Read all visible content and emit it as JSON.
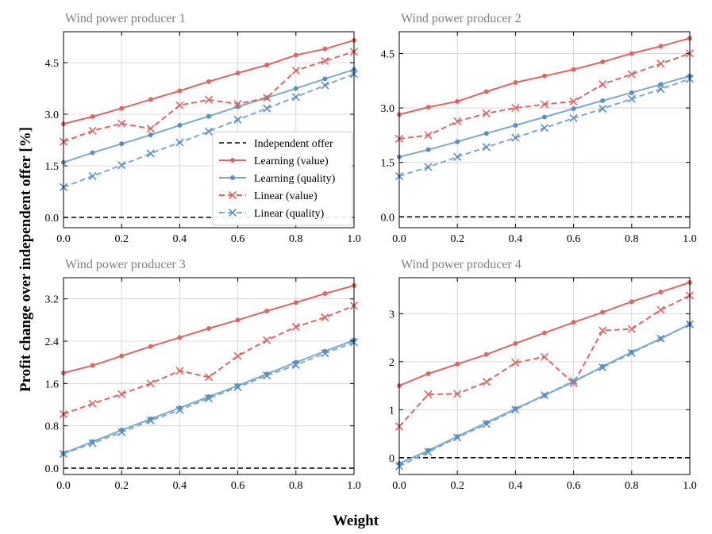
{
  "figure": {
    "ylabel": "Profit change over independent offer [%]",
    "xlabel": "Weight"
  },
  "legend": [
    {
      "label": "Independent offer",
      "style": "baseline"
    },
    {
      "label": "Learning (value)",
      "style": "learning-value"
    },
    {
      "label": "Learning (quality)",
      "style": "learning-quality"
    },
    {
      "label": "Linear (value)",
      "style": "linear-value"
    },
    {
      "label": "Linear (quality)",
      "style": "linear-quality"
    }
  ],
  "colors": {
    "red": "#e06666",
    "blue": "#7eaad2",
    "blue_marker": "#5b8fc4",
    "baseline": "#000000"
  },
  "chart_data": [
    {
      "type": "line",
      "title": "Wind power producer 1",
      "x": [
        0.0,
        0.1,
        0.2,
        0.3,
        0.4,
        0.5,
        0.6,
        0.7,
        0.8,
        0.9,
        1.0
      ],
      "xticks": [
        "0.0",
        "0.2",
        "0.4",
        "0.6",
        "0.8",
        "1.0"
      ],
      "xlim": [
        0,
        1
      ],
      "ylim": [
        -0.3,
        5.4
      ],
      "yticks": [
        0.0,
        1.5,
        3.0,
        4.5
      ],
      "ytick_labels": [
        "0.0",
        "1.5",
        "3.0",
        "4.5"
      ],
      "legend": true,
      "series": [
        {
          "name": "Learning (value)",
          "values": [
            2.72,
            2.93,
            3.17,
            3.43,
            3.68,
            3.95,
            4.2,
            4.43,
            4.72,
            4.9,
            5.15
          ]
        },
        {
          "name": "Learning (quality)",
          "values": [
            1.6,
            1.88,
            2.14,
            2.4,
            2.68,
            2.94,
            3.22,
            3.48,
            3.75,
            4.03,
            4.3
          ]
        },
        {
          "name": "Linear (value)",
          "values": [
            2.2,
            2.52,
            2.73,
            2.58,
            3.26,
            3.42,
            3.3,
            3.48,
            4.27,
            4.55,
            4.82
          ]
        },
        {
          "name": "Linear (quality)",
          "values": [
            0.88,
            1.2,
            1.52,
            1.86,
            2.18,
            2.5,
            2.84,
            3.17,
            3.5,
            3.84,
            4.17
          ]
        }
      ]
    },
    {
      "type": "line",
      "title": "Wind power producer 2",
      "x": [
        0.0,
        0.1,
        0.2,
        0.3,
        0.4,
        0.5,
        0.6,
        0.7,
        0.8,
        0.9,
        1.0
      ],
      "xticks": [
        "0.0",
        "0.2",
        "0.4",
        "0.6",
        "0.8",
        "1.0"
      ],
      "xlim": [
        0,
        1
      ],
      "ylim": [
        -0.3,
        5.1
      ],
      "yticks": [
        0.0,
        1.5,
        3.0,
        4.5
      ],
      "ytick_labels": [
        "0.0",
        "1.5",
        "3.0",
        "4.5"
      ],
      "legend": false,
      "series": [
        {
          "name": "Learning (value)",
          "values": [
            2.82,
            3.02,
            3.18,
            3.45,
            3.7,
            3.88,
            4.06,
            4.27,
            4.5,
            4.7,
            4.92
          ]
        },
        {
          "name": "Learning (quality)",
          "values": [
            1.65,
            1.85,
            2.07,
            2.3,
            2.52,
            2.75,
            2.98,
            3.2,
            3.42,
            3.65,
            3.88
          ]
        },
        {
          "name": "Linear (value)",
          "values": [
            2.15,
            2.25,
            2.63,
            2.85,
            3.0,
            3.1,
            3.18,
            3.65,
            3.93,
            4.22,
            4.5
          ]
        },
        {
          "name": "Linear (quality)",
          "values": [
            1.12,
            1.37,
            1.65,
            1.92,
            2.18,
            2.45,
            2.72,
            2.98,
            3.25,
            3.52,
            3.8
          ]
        }
      ]
    },
    {
      "type": "line",
      "title": "Wind power producer 3",
      "x": [
        0.0,
        0.1,
        0.2,
        0.3,
        0.4,
        0.5,
        0.6,
        0.7,
        0.8,
        0.9,
        1.0
      ],
      "xticks": [
        "0.0",
        "0.2",
        "0.4",
        "0.6",
        "0.8",
        "1.0"
      ],
      "xlim": [
        0,
        1
      ],
      "ylim": [
        -0.12,
        3.6
      ],
      "yticks": [
        0.0,
        0.8,
        1.6,
        2.4,
        3.2
      ],
      "ytick_labels": [
        "0.0",
        "0.8",
        "1.6",
        "2.4",
        "3.2"
      ],
      "legend": false,
      "series": [
        {
          "name": "Learning (value)",
          "values": [
            1.8,
            1.94,
            2.12,
            2.3,
            2.47,
            2.64,
            2.8,
            2.97,
            3.13,
            3.3,
            3.45
          ]
        },
        {
          "name": "Learning (quality)",
          "values": [
            0.28,
            0.5,
            0.72,
            0.93,
            1.14,
            1.35,
            1.56,
            1.78,
            2.0,
            2.21,
            2.42
          ]
        },
        {
          "name": "Linear (value)",
          "values": [
            1.02,
            1.22,
            1.4,
            1.6,
            1.84,
            1.72,
            2.12,
            2.42,
            2.67,
            2.85,
            3.07
          ]
        },
        {
          "name": "Linear (quality)",
          "values": [
            0.27,
            0.47,
            0.68,
            0.9,
            1.1,
            1.32,
            1.53,
            1.75,
            1.95,
            2.17,
            2.38
          ]
        }
      ]
    },
    {
      "type": "line",
      "title": "Wind power producer 4",
      "x": [
        0.0,
        0.1,
        0.2,
        0.3,
        0.4,
        0.5,
        0.6,
        0.7,
        0.8,
        0.9,
        1.0
      ],
      "xticks": [
        "0.0",
        "0.2",
        "0.4",
        "0.6",
        "0.8",
        "1.0"
      ],
      "xlim": [
        0,
        1
      ],
      "ylim": [
        -0.35,
        3.75
      ],
      "yticks": [
        0,
        1,
        2,
        3
      ],
      "ytick_labels": [
        "0",
        "1",
        "2",
        "3"
      ],
      "legend": false,
      "series": [
        {
          "name": "Learning (value)",
          "values": [
            1.5,
            1.75,
            1.95,
            2.15,
            2.38,
            2.6,
            2.82,
            3.03,
            3.25,
            3.45,
            3.65
          ]
        },
        {
          "name": "Learning (quality)",
          "values": [
            -0.12,
            0.15,
            0.44,
            0.73,
            1.02,
            1.3,
            1.58,
            1.9,
            2.2,
            2.48,
            2.78
          ]
        },
        {
          "name": "Linear (value)",
          "values": [
            0.65,
            1.32,
            1.33,
            1.58,
            1.98,
            2.1,
            1.55,
            2.65,
            2.68,
            3.08,
            3.38
          ]
        },
        {
          "name": "Linear (quality)",
          "values": [
            -0.18,
            0.12,
            0.42,
            0.7,
            1.0,
            1.3,
            1.6,
            1.88,
            2.18,
            2.48,
            2.78
          ]
        }
      ]
    }
  ]
}
